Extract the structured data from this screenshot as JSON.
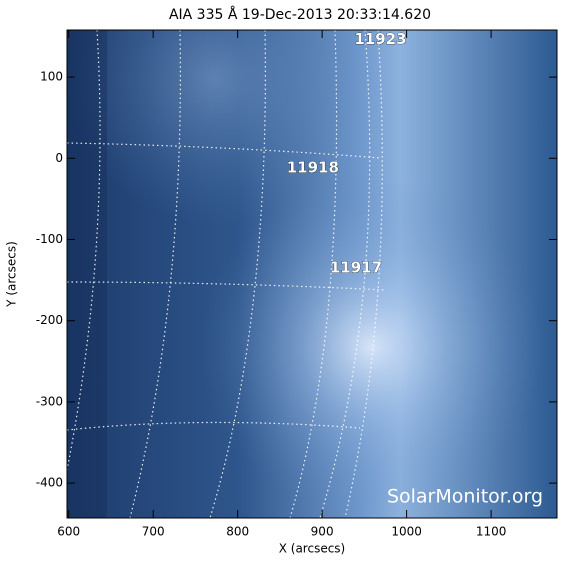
{
  "chart_data": {
    "type": "image",
    "title": "AIA 335 Å 19-Dec-2013 20:33:14.620",
    "xlabel": "X (arcsecs)",
    "ylabel": "Y (arcsecs)",
    "xlim": [
      598,
      1178
    ],
    "ylim": [
      -443,
      158
    ],
    "xticks": [
      600,
      700,
      800,
      900,
      1000,
      1100
    ],
    "yticks": [
      -400,
      -300,
      -200,
      -100,
      0,
      100
    ],
    "annotations": [
      {
        "text": "11923",
        "x": 969,
        "y": 146
      },
      {
        "text": "11918",
        "x": 889,
        "y": -12
      },
      {
        "text": "11917",
        "x": 940,
        "y": -135
      }
    ],
    "watermark": "SolarMonitor.org"
  }
}
